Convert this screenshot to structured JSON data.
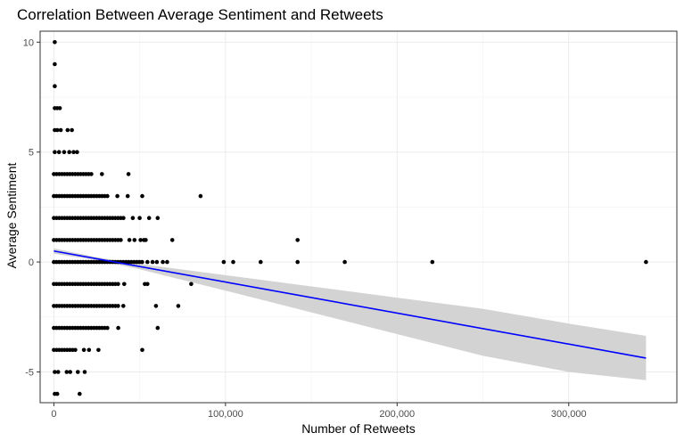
{
  "chart_data": {
    "type": "scatter",
    "title": "Correlation Between Average Sentiment and Retweets",
    "xlabel": "Number of Retweets",
    "ylabel": "Average Sentiment",
    "xlim": [
      -8000,
      363000
    ],
    "ylim": [
      -6.4,
      10.5
    ],
    "x_ticks": [
      0,
      100000,
      200000,
      300000
    ],
    "x_tick_labels": [
      "0",
      "100,000",
      "200,000",
      "300,000"
    ],
    "y_ticks": [
      -5,
      0,
      5,
      10
    ],
    "y_tick_labels": [
      "-5",
      "0",
      "5",
      "10"
    ],
    "grid": true,
    "theme": "bw",
    "point_color": "#000000",
    "fit_line_color": "#0000ff",
    "ribbon_color": "#d3d3d3",
    "dense_clusters": [
      {
        "y": 4,
        "x_min": 0,
        "x_max": 22000
      },
      {
        "y": 3,
        "x_min": 0,
        "x_max": 32000
      },
      {
        "y": 2,
        "x_min": 0,
        "x_max": 42000
      },
      {
        "y": 1,
        "x_min": 0,
        "x_max": 40000
      },
      {
        "y": 0,
        "x_min": 0,
        "x_max": 52000
      },
      {
        "y": -1,
        "x_min": 0,
        "x_max": 38000
      },
      {
        "y": -2,
        "x_min": 0,
        "x_max": 38000
      },
      {
        "y": -3,
        "x_min": 0,
        "x_max": 32000
      },
      {
        "y": -4,
        "x_min": 0,
        "x_max": 14000
      }
    ],
    "points": [
      {
        "x": 500,
        "y": 10
      },
      {
        "x": 500,
        "y": 9
      },
      {
        "x": 500,
        "y": 8
      },
      {
        "x": 500,
        "y": 7
      },
      {
        "x": 2000,
        "y": 7
      },
      {
        "x": 3500,
        "y": 7
      },
      {
        "x": 500,
        "y": 6
      },
      {
        "x": 2000,
        "y": 6
      },
      {
        "x": 4000,
        "y": 6
      },
      {
        "x": 8000,
        "y": 6
      },
      {
        "x": 10500,
        "y": 6
      },
      {
        "x": 500,
        "y": 5
      },
      {
        "x": 3000,
        "y": 5
      },
      {
        "x": 6000,
        "y": 5
      },
      {
        "x": 9000,
        "y": 5
      },
      {
        "x": 11500,
        "y": 5
      },
      {
        "x": 13500,
        "y": 5
      },
      {
        "x": 28000,
        "y": 4
      },
      {
        "x": 43500,
        "y": 4
      },
      {
        "x": 37000,
        "y": 3
      },
      {
        "x": 43000,
        "y": 3
      },
      {
        "x": 51500,
        "y": 3
      },
      {
        "x": 85500,
        "y": 3
      },
      {
        "x": 46000,
        "y": 2
      },
      {
        "x": 50000,
        "y": 2
      },
      {
        "x": 55500,
        "y": 2
      },
      {
        "x": 60500,
        "y": 2
      },
      {
        "x": 44000,
        "y": 1
      },
      {
        "x": 47000,
        "y": 1
      },
      {
        "x": 50500,
        "y": 1
      },
      {
        "x": 52500,
        "y": 1
      },
      {
        "x": 53500,
        "y": 1
      },
      {
        "x": 69000,
        "y": 1
      },
      {
        "x": 142000,
        "y": 1
      },
      {
        "x": 54500,
        "y": 0
      },
      {
        "x": 57500,
        "y": 0
      },
      {
        "x": 60000,
        "y": 0
      },
      {
        "x": 63500,
        "y": 0
      },
      {
        "x": 66000,
        "y": 0
      },
      {
        "x": 99000,
        "y": 0
      },
      {
        "x": 104500,
        "y": 0
      },
      {
        "x": 120500,
        "y": 0
      },
      {
        "x": 142000,
        "y": 0
      },
      {
        "x": 169500,
        "y": 0
      },
      {
        "x": 220500,
        "y": 0
      },
      {
        "x": 345000,
        "y": 0
      },
      {
        "x": 41000,
        "y": -1
      },
      {
        "x": 53000,
        "y": -1
      },
      {
        "x": 54500,
        "y": -1
      },
      {
        "x": 80000,
        "y": -1
      },
      {
        "x": 40500,
        "y": -2
      },
      {
        "x": 59500,
        "y": -2
      },
      {
        "x": 72500,
        "y": -2
      },
      {
        "x": 37500,
        "y": -3
      },
      {
        "x": 60500,
        "y": -3
      },
      {
        "x": 17500,
        "y": -4
      },
      {
        "x": 20500,
        "y": -4
      },
      {
        "x": 26000,
        "y": -4
      },
      {
        "x": 51500,
        "y": -4
      },
      {
        "x": 500,
        "y": -5
      },
      {
        "x": 2500,
        "y": -5
      },
      {
        "x": 7500,
        "y": -5
      },
      {
        "x": 9500,
        "y": -5
      },
      {
        "x": 14000,
        "y": -5
      },
      {
        "x": 18000,
        "y": -5
      },
      {
        "x": 500,
        "y": -6
      },
      {
        "x": 2000,
        "y": -6
      },
      {
        "x": 15000,
        "y": -6
      }
    ],
    "fit_line": {
      "x_start": 0,
      "y_start": 0.5,
      "x_end": 345000,
      "y_end": -4.37
    },
    "ribbon": [
      {
        "x": 0,
        "lo": 0.38,
        "hi": 0.62
      },
      {
        "x": 25000,
        "lo": 0.08,
        "hi": 0.22
      },
      {
        "x": 50000,
        "lo": -0.33,
        "hi": -0.09
      },
      {
        "x": 100000,
        "lo": -1.3,
        "hi": -0.6
      },
      {
        "x": 150000,
        "lo": -2.29,
        "hi": -1.11
      },
      {
        "x": 200000,
        "lo": -3.28,
        "hi": -1.62
      },
      {
        "x": 250000,
        "lo": -4.27,
        "hi": -2.13
      },
      {
        "x": 300000,
        "lo": -5.0,
        "hi": -2.8
      },
      {
        "x": 345000,
        "lo": -5.38,
        "hi": -3.36
      }
    ]
  }
}
